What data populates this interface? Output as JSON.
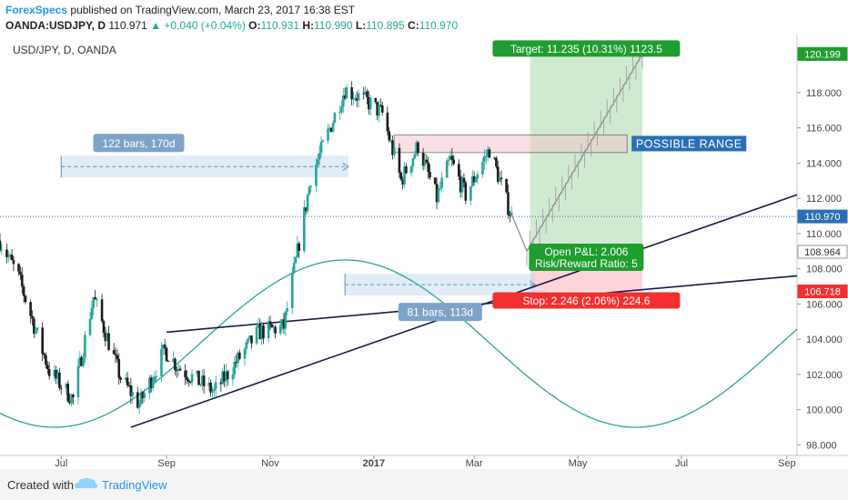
{
  "header": {
    "author": "ForexSpecs",
    "published_text": "published on TradingView.com, March 23, 2017 16:38 EST",
    "symbol_line": "OANDA:USDJPY, D",
    "last": "110.971",
    "change": "▲ +0.040 (+0.04%)",
    "ohlc": [
      "O:",
      "110.931",
      "H:",
      "110.990",
      "L:",
      "110.895",
      "C:",
      "110.970"
    ]
  },
  "footer": {
    "created_with": "Created with",
    "brand": "TradingView"
  },
  "colors": {
    "up": "#26a69a",
    "down": "#1e1e1e",
    "sine": "#26a69a",
    "trendline": "#1a1a4e",
    "target_zone": "#c8e6c9",
    "stop_zone": "#ffcdd2",
    "range_box": "#f4c7cf",
    "label_blue": "#7fa3c7",
    "label_green": "#1f9e2f",
    "label_red": "#f23030",
    "brand": "#2196f3"
  },
  "chart_data": {
    "type": "candlestick",
    "title": "USD/JPY, D, OANDA",
    "ylim": [
      97.4,
      121.3
    ],
    "y_ticks": [
      "98.000",
      "100.000",
      "102.000",
      "104.000",
      "106.000",
      "108.000",
      "110.000",
      "112.000",
      "114.000",
      "116.000",
      "118.000",
      "120.000"
    ],
    "x_ticks": [
      "Jul",
      "Sep",
      "Nov",
      "2017",
      "Mar",
      "May",
      "Jul",
      "Sep"
    ],
    "x_tick_dates": [
      "2016-07-01",
      "2016-09-01",
      "2016-11-01",
      "2017-01-01",
      "2017-03-01",
      "2017-05-01",
      "2017-07-01",
      "2017-09-01"
    ],
    "x_range": [
      "2016-05-26",
      "2017-09-07"
    ],
    "price_waypoints": [
      [
        "2016-05-26",
        109.6
      ],
      [
        "2016-06-06",
        107.5
      ],
      [
        "2016-06-16",
        104.5
      ],
      [
        "2016-06-24",
        102.2
      ],
      [
        "2016-07-08",
        100.6
      ],
      [
        "2016-07-20",
        106.4
      ],
      [
        "2016-08-05",
        101.8
      ],
      [
        "2016-08-16",
        100.3
      ],
      [
        "2016-08-31",
        103.4
      ],
      [
        "2016-09-08",
        102.4
      ],
      [
        "2016-09-29",
        101.0
      ],
      [
        "2016-10-25",
        104.4
      ],
      [
        "2016-11-09",
        104.7
      ],
      [
        "2016-11-25",
        113.2
      ],
      [
        "2016-12-15",
        118.2
      ],
      [
        "2016-12-28",
        117.5
      ],
      [
        "2017-01-06",
        116.8
      ],
      [
        "2017-01-17",
        113.0
      ],
      [
        "2017-01-27",
        115.0
      ],
      [
        "2017-02-07",
        112.0
      ],
      [
        "2017-02-15",
        114.2
      ],
      [
        "2017-02-24",
        112.2
      ],
      [
        "2017-03-10",
        114.8
      ],
      [
        "2017-03-23",
        110.97
      ]
    ],
    "last_price": 110.97,
    "price_labels": [
      {
        "text": "120.199",
        "value": 120.199,
        "color": "#1f9e2f"
      },
      {
        "text": "110.970",
        "value": 110.97,
        "color": "#2a6fb5"
      },
      {
        "text": "108.964",
        "value": 108.964,
        "color": "#ffffff",
        "text_color": "#333333"
      },
      {
        "text": "106.718",
        "value": 106.718,
        "color": "#f23030"
      }
    ],
    "position": {
      "entry": 108.964,
      "target": 120.199,
      "stop": 106.718,
      "start": "2017-04-03",
      "end": "2017-06-08",
      "target_label": "Target: 11.235 (10.31%) 1123.5",
      "stop_label": "Stop: 2.246 (2.06%) 224.6",
      "open_pl": "Open P&L: 2.006",
      "rr": "Risk/Reward Ratio: 5"
    },
    "range_box": {
      "start": "2017-01-13",
      "end": "2017-05-30",
      "low": 114.6,
      "high": 115.6,
      "label": "POSSIBLE RANGE"
    },
    "trendlines": [
      {
        "from": [
          "2016-08-11",
          99.0
        ],
        "to": [
          "2017-09-07",
          112.2
        ]
      },
      {
        "from": [
          "2016-09-01",
          104.4
        ],
        "to": [
          "2017-09-07",
          107.6
        ]
      }
    ],
    "sine": {
      "amplitude": 4.75,
      "mid": 103.75,
      "peak": "2016-12-15",
      "period_days": 342
    },
    "bars_pattern_1": {
      "start": "2016-07-01",
      "end": "2016-12-17",
      "value": 113.8,
      "label": "122 bars, 170d"
    },
    "bars_pattern_2": {
      "start": "2016-12-15",
      "end": "2017-04-06",
      "value": 107.1,
      "label": "81 bars, 113d"
    },
    "projection": {
      "from": [
        "2017-03-23",
        111.1
      ],
      "dip": [
        "2017-04-01",
        109.0
      ],
      "to": [
        "2017-06-08",
        120.2
      ]
    }
  }
}
